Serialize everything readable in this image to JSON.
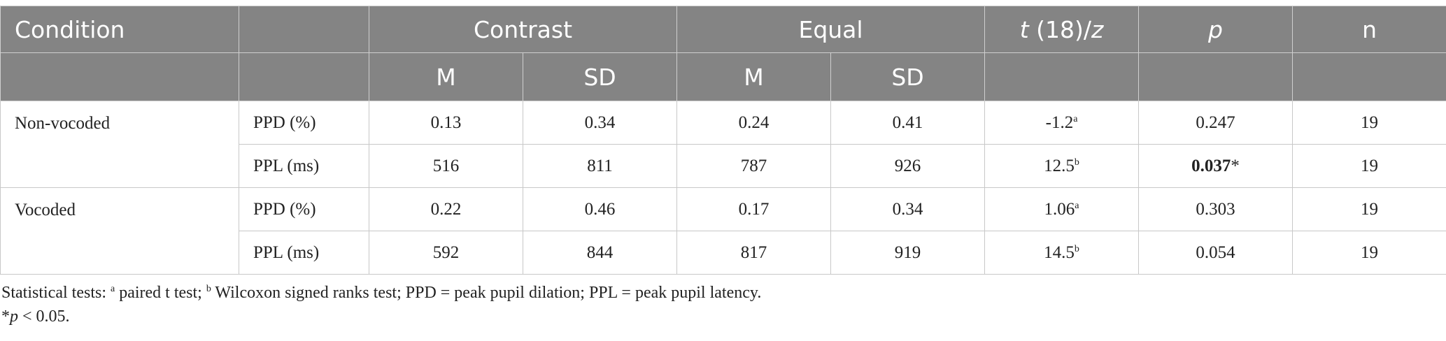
{
  "header": {
    "condition": "Condition",
    "contrast": "Contrast",
    "equal": "Equal",
    "stat_t": "t",
    "stat_mid": " (18)/",
    "stat_z": "z",
    "p": "p",
    "n": "n",
    "m": "M",
    "sd": "SD"
  },
  "rows": [
    {
      "condition": "Non-vocoded",
      "measure": "PPD (%)",
      "c_m": "0.13",
      "c_sd": "0.34",
      "e_m": "0.24",
      "e_sd": "0.41",
      "stat": "-1.2",
      "stat_sup": "a",
      "p": "0.247",
      "p_star": "",
      "n": "19"
    },
    {
      "condition": "",
      "measure": "PPL (ms)",
      "c_m": "516",
      "c_sd": "811",
      "e_m": "787",
      "e_sd": "926",
      "stat": "12.5",
      "stat_sup": "b",
      "p": "0.037",
      "p_star": "*",
      "n": "19"
    },
    {
      "condition": "Vocoded",
      "measure": "PPD (%)",
      "c_m": "0.22",
      "c_sd": "0.46",
      "e_m": "0.17",
      "e_sd": "0.34",
      "stat": "1.06",
      "stat_sup": "a",
      "p": "0.303",
      "p_star": "",
      "n": "19"
    },
    {
      "condition": "",
      "measure": "PPL (ms)",
      "c_m": "592",
      "c_sd": "844",
      "e_m": "817",
      "e_sd": "919",
      "stat": "14.5",
      "stat_sup": "b",
      "p": "0.054",
      "p_star": "",
      "n": "19"
    }
  ],
  "notes": {
    "line1_a": "Statistical tests: ",
    "sup_a": "a",
    "line1_b": " paired t test; ",
    "sup_b": "b",
    "line1_c": " Wilcoxon signed ranks test; PPD = peak pupil dilation; PPL = peak pupil latency.",
    "star": "*",
    "p": "p",
    "line2_rest": " < 0.05."
  }
}
